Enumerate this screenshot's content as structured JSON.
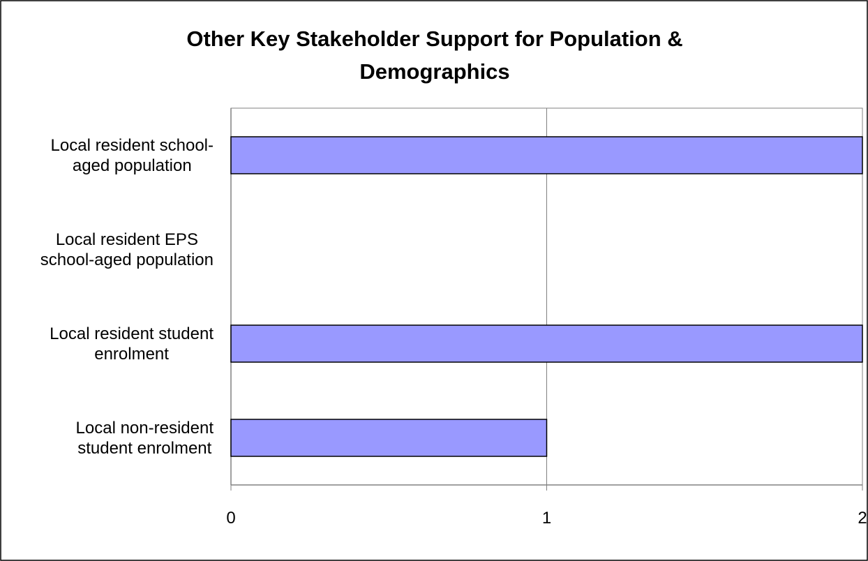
{
  "chart_data": {
    "type": "bar",
    "orientation": "horizontal",
    "title_lines": [
      "Other Key Stakeholder Support for Population &",
      "Demographics"
    ],
    "categories": [
      [
        "Local resident school-",
        "aged population"
      ],
      [
        "Local resident EPS",
        "school-aged population"
      ],
      [
        "Local resident student",
        "enrolment"
      ],
      [
        "Local non-resident",
        "student enrolment"
      ]
    ],
    "values": [
      2,
      0,
      2,
      1
    ],
    "xlim": [
      0,
      2
    ],
    "x_ticks": [
      "0",
      "1",
      "2"
    ],
    "xlabel": "",
    "ylabel": "",
    "grid": "vertical",
    "legend": "none",
    "colors": {
      "bar_fill": "#9999FF",
      "bar_stroke": "#000000",
      "grid": "#808080",
      "axis": "#808080",
      "frame": "#000000"
    }
  }
}
